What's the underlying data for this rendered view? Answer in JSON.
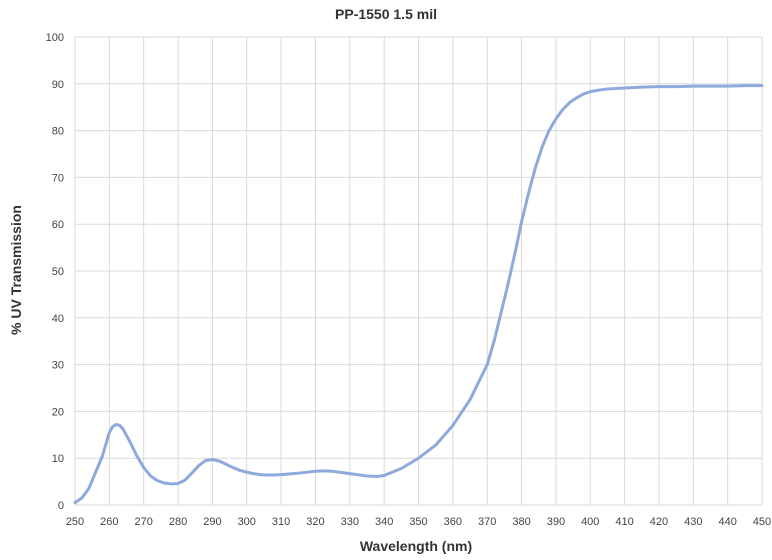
{
  "chart_data": {
    "type": "line",
    "title": "PP-1550 1.5 mil",
    "xlabel": "Wavelength (nm)",
    "ylabel": "% UV Transmission",
    "xlim": [
      250,
      450
    ],
    "ylim": [
      0,
      100
    ],
    "xticks": [
      "250",
      "260",
      "270",
      "280",
      "290",
      "300",
      "310",
      "320",
      "330",
      "340",
      "350",
      "360",
      "370",
      "380",
      "390",
      "400",
      "410",
      "420",
      "430",
      "440",
      "450"
    ],
    "yticks": [
      "0",
      "10",
      "20",
      "30",
      "40",
      "50",
      "60",
      "70",
      "80",
      "90",
      "100"
    ],
    "grid": true,
    "legend": "none",
    "line_color": "#8ea9db",
    "grid_color": "#d9d9d9",
    "series": [
      {
        "x": [
          250,
          252,
          254,
          256,
          258,
          260,
          261,
          262,
          263,
          264,
          266,
          268,
          270,
          272,
          274,
          276,
          278,
          280,
          282,
          284,
          286,
          288,
          290,
          292,
          294,
          296,
          298,
          300,
          302,
          304,
          306,
          308,
          310,
          315,
          320,
          322,
          325,
          330,
          335,
          338,
          340,
          345,
          350,
          355,
          360,
          365,
          370,
          372,
          374,
          376,
          378,
          380,
          382,
          384,
          386,
          388,
          390,
          392,
          394,
          396,
          398,
          400,
          402,
          405,
          410,
          415,
          420,
          425,
          430,
          435,
          440,
          445,
          450
        ],
        "values": [
          0.5,
          1.5,
          3.5,
          7.0,
          10.5,
          15.5,
          16.8,
          17.2,
          17.0,
          16.2,
          13.5,
          10.5,
          8.0,
          6.2,
          5.2,
          4.7,
          4.5,
          4.6,
          5.3,
          6.8,
          8.4,
          9.5,
          9.7,
          9.4,
          8.7,
          8.0,
          7.4,
          7.0,
          6.7,
          6.5,
          6.4,
          6.4,
          6.5,
          6.8,
          7.2,
          7.3,
          7.2,
          6.7,
          6.2,
          6.1,
          6.3,
          7.8,
          10.0,
          12.8,
          17.0,
          22.5,
          30.0,
          35.0,
          41.0,
          47.0,
          53.5,
          60.5,
          66.5,
          72.0,
          76.5,
          80.0,
          82.5,
          84.5,
          86.0,
          87.0,
          87.8,
          88.3,
          88.6,
          88.9,
          89.1,
          89.3,
          89.4,
          89.4,
          89.5,
          89.5,
          89.5,
          89.6,
          89.6
        ]
      }
    ]
  }
}
